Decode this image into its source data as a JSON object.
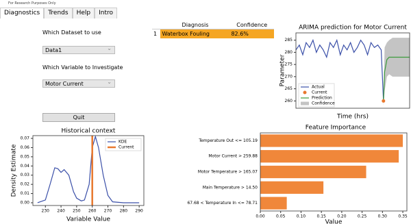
{
  "window_title": "For Research Purposes Only",
  "tabs": [
    "Diagnostics",
    "Trends",
    "Help",
    "Intro"
  ],
  "controls": {
    "dataset_label": "Which Dataset to use",
    "dataset_value": "Data1",
    "variable_label": "Which Variable to Investigate",
    "variable_value": "Motor Current",
    "quit": "Quit"
  },
  "table": {
    "columns": [
      "Diagnosis",
      "Confidence"
    ],
    "rows": [
      [
        "1",
        "Waterbox Fouling",
        "82.6%"
      ]
    ]
  },
  "chart_data": [
    {
      "type": "line",
      "title": "ARIMA prediction for Motor Current",
      "xlabel": "Time (hrs)",
      "ylabel": "Parameter",
      "xlim": [
        0,
        100
      ],
      "ylim": [
        257,
        288
      ],
      "yticks": [
        260,
        265,
        270,
        275,
        280,
        285
      ],
      "legend": "lower left",
      "series": [
        {
          "name": "Actual",
          "style": "line",
          "color": "#3a4fa8",
          "x": [
            0,
            3,
            6,
            9,
            12,
            15,
            18,
            21,
            24,
            27,
            30,
            33,
            36,
            39,
            42,
            45,
            48,
            51,
            54,
            57,
            60,
            63,
            66,
            69,
            72,
            75,
            77
          ],
          "values": [
            281,
            283,
            279,
            284,
            282,
            285,
            280,
            283,
            281,
            278,
            284,
            282,
            285,
            279,
            283,
            281,
            284,
            280,
            282,
            285,
            283,
            279,
            284,
            282,
            283,
            281,
            260
          ]
        },
        {
          "name": "Current",
          "style": "point",
          "color": "#e8782e",
          "x": [
            77
          ],
          "values": [
            260
          ]
        },
        {
          "name": "Prediction",
          "style": "line",
          "color": "#3c9a3c",
          "x": [
            77,
            78,
            80,
            82,
            85,
            90,
            95,
            100
          ],
          "values": [
            260,
            272,
            277,
            278,
            278,
            278,
            278,
            278
          ]
        },
        {
          "name": "Confidence",
          "style": "band",
          "color": "#c4c4c4",
          "x": [
            77,
            78,
            80,
            82,
            85,
            90,
            95,
            100
          ],
          "upper": [
            262,
            282,
            284,
            285,
            286,
            286,
            286,
            286
          ],
          "lower": [
            258,
            264,
            270,
            271,
            270,
            270,
            270,
            270
          ]
        }
      ]
    },
    {
      "type": "line",
      "title": "Historical context",
      "xlabel": "Variable Value",
      "ylabel": "Density Estimate",
      "xlim": [
        222,
        293
      ],
      "ylim": [
        -0.003,
        0.073
      ],
      "xticks": [
        230,
        240,
        250,
        260,
        270,
        280,
        290
      ],
      "yticks": [
        {
          "value": 0,
          "label": "0.00"
        },
        {
          "value": 0.01,
          "label": "0.01"
        },
        {
          "value": 0.02,
          "label": "0.02"
        },
        {
          "value": 0.03,
          "label": "0.03"
        },
        {
          "value": 0.04,
          "label": "0.04"
        },
        {
          "value": 0.05,
          "label": "0.05"
        },
        {
          "value": 0.06,
          "label": "0.06"
        },
        {
          "value": 0.07,
          "label": "0.07"
        }
      ],
      "legend": "upper right",
      "series": [
        {
          "name": "KDE",
          "style": "line",
          "color": "#3a4fa8",
          "x": [
            225,
            230,
            233,
            236,
            238,
            240,
            242,
            245,
            248,
            250,
            253,
            255,
            258,
            260,
            262,
            264,
            267,
            270,
            273,
            280,
            290
          ],
          "values": [
            0.0,
            0.003,
            0.02,
            0.038,
            0.037,
            0.033,
            0.036,
            0.03,
            0.012,
            0.005,
            0.002,
            0.003,
            0.02,
            0.06,
            0.072,
            0.06,
            0.03,
            0.008,
            0.001,
            0.0,
            0.0
          ]
        },
        {
          "name": "Current",
          "style": "vline",
          "color": "#e8782e",
          "x": [
            260
          ]
        }
      ]
    },
    {
      "type": "barh",
      "title": "Feature Importance",
      "xlabel": "Value",
      "color": "#f0873a",
      "categories": [
        "Temperature Out <= 105.19",
        "Motor Current > 259.88",
        "Motor Temperature > 165.07",
        "Main Temperature > 14.50",
        "67.68 < Temperature In <= 78.71"
      ],
      "values": [
        0.35,
        0.34,
        0.26,
        0.155,
        0.065
      ],
      "xlim": [
        0,
        0.36
      ],
      "xticks": [
        {
          "value": 0,
          "label": "0.00"
        },
        {
          "value": 0.05,
          "label": "0.05"
        },
        {
          "value": 0.1,
          "label": "0.10"
        },
        {
          "value": 0.15,
          "label": "0.15"
        },
        {
          "value": 0.2,
          "label": "0.20"
        },
        {
          "value": 0.25,
          "label": "0.25"
        },
        {
          "value": 0.3,
          "label": "0.30"
        },
        {
          "value": 0.35,
          "label": "0.35"
        }
      ]
    }
  ]
}
